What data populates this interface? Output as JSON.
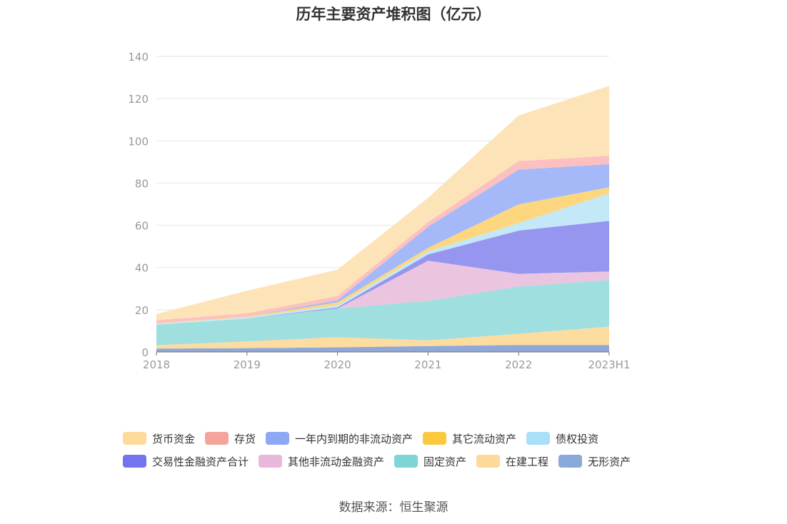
{
  "chart_data": {
    "type": "area",
    "stacked": true,
    "title": "历年主要资产堆积图（亿元）",
    "xlabel": "",
    "ylabel": "",
    "ylim": [
      0,
      140
    ],
    "y_ticks": [
      0,
      20,
      40,
      60,
      80,
      100,
      120,
      140
    ],
    "categories": [
      "2018",
      "2019",
      "2020",
      "2021",
      "2022",
      "2023H1"
    ],
    "grid": true,
    "legend_position": "bottom",
    "series": [
      {
        "name": "无形资产",
        "color": "#8fa8d8",
        "values": [
          1.6,
          1.8,
          2.2,
          2.8,
          3.3,
          3.3
        ]
      },
      {
        "name": "在建工程",
        "color": "#fddca0",
        "values": [
          1.6,
          3.2,
          4.8,
          2.7,
          5.3,
          8.7
        ]
      },
      {
        "name": "固定资产",
        "color": "#9fdfdf",
        "values": [
          9.7,
          10.8,
          13.6,
          18.7,
          22.4,
          22.1
        ]
      },
      {
        "name": "其他非流动金融资产",
        "color": "#ebc5e0",
        "values": [
          0,
          0,
          0,
          19.0,
          6.0,
          4.0
        ]
      },
      {
        "name": "交易性金融资产合计",
        "color": "#9696f0",
        "values": [
          0,
          0,
          0.5,
          3.0,
          20.5,
          24.0
        ]
      },
      {
        "name": "债权投资",
        "color": "#c3e8f8",
        "values": [
          0.5,
          0.6,
          1.0,
          1.5,
          3.5,
          13.0
        ]
      },
      {
        "name": "其它流动资产",
        "color": "#fdd77f",
        "values": [
          0.3,
          0.4,
          1.4,
          1.6,
          8.9,
          2.9
        ]
      },
      {
        "name": "一年内到期的非流动资产",
        "color": "#a5b9f8",
        "values": [
          0,
          0,
          1.0,
          10.0,
          16.5,
          11.0
        ]
      },
      {
        "name": "存货",
        "color": "#fcc0c0",
        "values": [
          1.3,
          1.5,
          2.0,
          2.2,
          4.0,
          4.0
        ]
      },
      {
        "name": "货币资金",
        "color": "#fde3b8",
        "values": [
          3.0,
          10.7,
          12.5,
          11.5,
          21.6,
          33.0
        ]
      }
    ]
  },
  "legend": [
    {
      "label": "货币资金",
      "color": "#fdd99a"
    },
    {
      "label": "存货",
      "color": "#f5a49c"
    },
    {
      "label": "一年内到期的非流动资产",
      "color": "#8ea8f5"
    },
    {
      "label": "其它流动资产",
      "color": "#fbc93e"
    },
    {
      "label": "债权投资",
      "color": "#a9dff8"
    },
    {
      "label": "交易性金融资产合计",
      "color": "#7474ef"
    },
    {
      "label": "其他非流动金融资产",
      "color": "#e9b7d9"
    },
    {
      "label": "固定资产",
      "color": "#7fd5d6"
    },
    {
      "label": "在建工程",
      "color": "#fdd99a"
    },
    {
      "label": "无形资产",
      "color": "#8aa9db"
    }
  ],
  "source": "数据来源：恒生聚源"
}
